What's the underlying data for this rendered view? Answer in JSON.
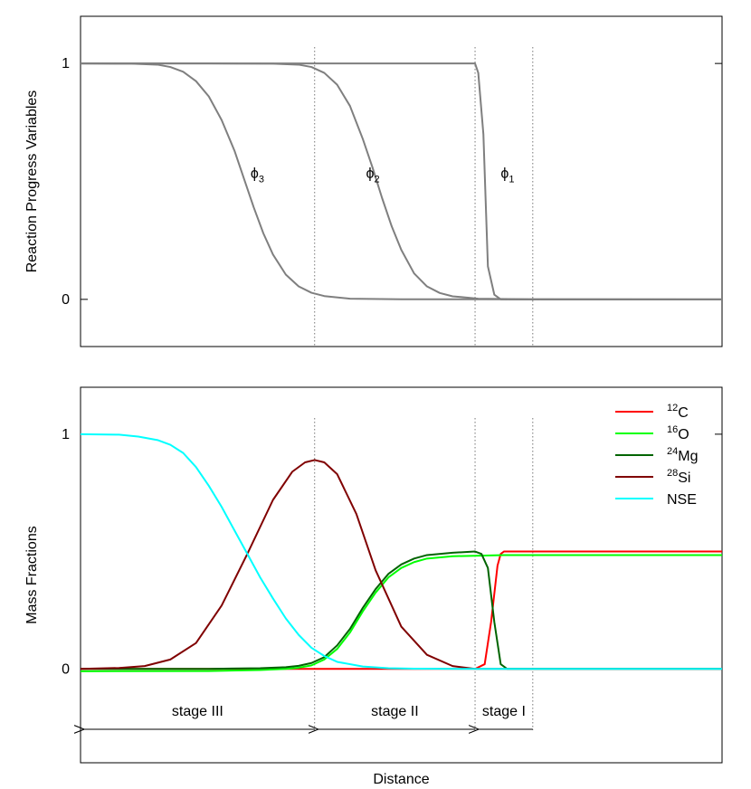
{
  "chart_data": [
    {
      "id": "top",
      "type": "line",
      "title": "",
      "xlabel": "",
      "ylabel": "Reaction Progress Variables",
      "xlim": [
        0,
        100
      ],
      "ylim": [
        -0.2,
        1.2
      ],
      "yticks": [
        0,
        1
      ],
      "ytick_labels": [
        "0",
        "1"
      ],
      "grid": false,
      "legend": "none",
      "series": [
        {
          "id": "phi1",
          "label_base": "ϕ",
          "label_sub": "1",
          "color": "#7f7f7f",
          "x": [
            0,
            60,
            61.5,
            62,
            62.8,
            63.5,
            64.5,
            65.5,
            100
          ],
          "y": [
            1,
            1,
            1,
            0.96,
            0.7,
            0.14,
            0.02,
            0,
            0
          ],
          "label_at": [
            65.5,
            0.5
          ]
        },
        {
          "id": "phi2",
          "label_base": "ϕ",
          "label_sub": "2",
          "color": "#7f7f7f",
          "x": [
            0,
            20,
            30,
            34,
            36,
            38,
            40,
            42,
            44,
            45.5,
            47,
            48.5,
            50,
            52,
            54,
            56,
            58,
            62,
            70,
            100
          ],
          "y": [
            1,
            1,
            0.999,
            0.995,
            0.985,
            0.96,
            0.91,
            0.82,
            0.68,
            0.56,
            0.43,
            0.31,
            0.21,
            0.11,
            0.055,
            0.027,
            0.013,
            0.003,
            0.0005,
            0
          ],
          "label_at": [
            44.5,
            0.5
          ]
        },
        {
          "id": "phi3",
          "label_base": "ϕ",
          "label_sub": "3",
          "color": "#7f7f7f",
          "x": [
            0,
            8,
            12,
            14,
            16,
            18,
            20,
            22,
            24,
            25.5,
            27,
            28.5,
            30,
            32,
            34,
            36,
            38,
            42,
            50,
            100
          ],
          "y": [
            1,
            0.999,
            0.995,
            0.985,
            0.965,
            0.925,
            0.86,
            0.76,
            0.63,
            0.51,
            0.39,
            0.28,
            0.19,
            0.105,
            0.055,
            0.028,
            0.014,
            0.003,
            0.0003,
            0
          ],
          "label_at": [
            26.5,
            0.5
          ]
        }
      ],
      "markers": [
        {
          "x": 36.5,
          "arrow_from": 36.5,
          "arrow_to": 0,
          "label": "stage III"
        },
        {
          "x": 61.5,
          "arrow_from": 61.5,
          "arrow_to": 36.5,
          "label": "stage II"
        },
        {
          "x": 70.5,
          "arrow_from": 70.5,
          "arrow_to": 61.5,
          "label": "stage I"
        }
      ]
    },
    {
      "id": "bottom",
      "type": "line",
      "title": "",
      "xlabel": "Distance",
      "ylabel": "Mass Fractions",
      "xlim": [
        0,
        100
      ],
      "ylim": [
        -0.4,
        1.2
      ],
      "yticks": [
        0,
        1
      ],
      "ytick_labels": [
        "0",
        "1"
      ],
      "grid": false,
      "legend": "top-right",
      "series": [
        {
          "id": "c12",
          "name_sup": "12",
          "name": "C",
          "color": "#ff0000",
          "x": [
            0,
            61.5,
            63,
            64,
            65,
            65.5,
            66,
            100
          ],
          "y": [
            0,
            0,
            0.02,
            0.2,
            0.44,
            0.49,
            0.5,
            0.5
          ]
        },
        {
          "id": "o16",
          "name_sup": "16",
          "name": "O",
          "color": "#00ff00",
          "x": [
            0,
            20,
            28,
            32,
            34,
            36,
            38,
            40,
            42,
            44,
            46,
            48,
            50,
            52,
            54,
            58,
            66,
            100
          ],
          "y": [
            -0.01,
            -0.009,
            -0.005,
            0,
            0.005,
            0.015,
            0.04,
            0.085,
            0.155,
            0.245,
            0.325,
            0.39,
            0.43,
            0.455,
            0.47,
            0.48,
            0.485,
            0.485
          ]
        },
        {
          "id": "mg24",
          "name_sup": "24",
          "name": "Mg",
          "color": "#006400",
          "x": [
            0,
            20,
            28,
            32,
            34,
            36,
            38,
            40,
            42,
            44,
            46,
            48,
            50,
            52,
            54,
            58,
            61.5,
            62.5,
            63.5,
            64.5,
            65.5,
            66.5,
            100
          ],
          "y": [
            0,
            0,
            0.003,
            0.007,
            0.013,
            0.025,
            0.05,
            0.1,
            0.17,
            0.26,
            0.34,
            0.405,
            0.445,
            0.47,
            0.485,
            0.495,
            0.5,
            0.49,
            0.43,
            0.2,
            0.02,
            0,
            0
          ]
        },
        {
          "id": "si28",
          "name_sup": "28",
          "name": "Si",
          "color": "#800000",
          "x": [
            0,
            6,
            10,
            14,
            18,
            22,
            26,
            30,
            33,
            35,
            36.5,
            38,
            40,
            43,
            46,
            50,
            54,
            58,
            61.5,
            100
          ],
          "y": [
            0,
            0.004,
            0.012,
            0.04,
            0.11,
            0.27,
            0.49,
            0.72,
            0.84,
            0.88,
            0.89,
            0.88,
            0.83,
            0.66,
            0.42,
            0.18,
            0.06,
            0.012,
            0,
            0
          ]
        },
        {
          "id": "nse",
          "name_sup": "",
          "name": "NSE",
          "color": "#00ffff",
          "x": [
            0,
            6,
            9,
            12,
            14,
            16,
            18,
            20,
            22,
            24,
            26,
            28,
            30,
            32,
            34,
            36,
            38,
            40,
            44,
            48,
            52,
            60,
            100
          ],
          "y": [
            1,
            0.998,
            0.99,
            0.975,
            0.955,
            0.92,
            0.86,
            0.78,
            0.69,
            0.59,
            0.49,
            0.39,
            0.3,
            0.215,
            0.145,
            0.09,
            0.055,
            0.03,
            0.01,
            0.003,
            0.0008,
            0.0001,
            0
          ]
        }
      ],
      "markers": [
        {
          "x": 36.5,
          "arrow_from": 36.5,
          "arrow_to": 0,
          "label": "stage III"
        },
        {
          "x": 61.5,
          "arrow_from": 61.5,
          "arrow_to": 36.5,
          "label": "stage II"
        },
        {
          "x": 70.5,
          "arrow_from": 70.5,
          "arrow_to": 61.5,
          "label": "stage I"
        }
      ]
    }
  ]
}
